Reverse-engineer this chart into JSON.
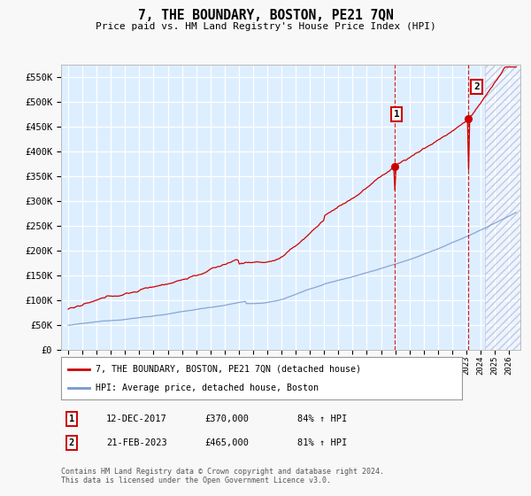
{
  "title": "7, THE BOUNDARY, BOSTON, PE21 7QN",
  "subtitle": "Price paid vs. HM Land Registry's House Price Index (HPI)",
  "ylim": [
    0,
    575000
  ],
  "xlim_start": 1994.5,
  "xlim_end": 2026.8,
  "yticks": [
    0,
    50000,
    100000,
    150000,
    200000,
    250000,
    300000,
    350000,
    400000,
    450000,
    500000,
    550000
  ],
  "ytick_labels": [
    "£0",
    "£50K",
    "£100K",
    "£150K",
    "£200K",
    "£250K",
    "£300K",
    "£350K",
    "£400K",
    "£450K",
    "£500K",
    "£550K"
  ],
  "xtick_years": [
    1995,
    1996,
    1997,
    1998,
    1999,
    2000,
    2001,
    2002,
    2003,
    2004,
    2005,
    2006,
    2007,
    2008,
    2009,
    2010,
    2011,
    2012,
    2013,
    2014,
    2015,
    2016,
    2017,
    2018,
    2019,
    2020,
    2021,
    2022,
    2023,
    2024,
    2025,
    2026
  ],
  "sale1_x": 2017.95,
  "sale1_y": 370000,
  "sale1_label": "1",
  "sale1_date": "12-DEC-2017",
  "sale1_price": "£370,000",
  "sale1_hpi": "84% ↑ HPI",
  "sale2_x": 2023.12,
  "sale2_y": 465000,
  "sale2_label": "2",
  "sale2_date": "21-FEB-2023",
  "sale2_price": "£465,000",
  "sale2_hpi": "81% ↑ HPI",
  "hpi_color": "#7799cc",
  "price_color": "#cc0000",
  "legend_label_price": "7, THE BOUNDARY, BOSTON, PE21 7QN (detached house)",
  "legend_label_hpi": "HPI: Average price, detached house, Boston",
  "footnote": "Contains HM Land Registry data © Crown copyright and database right 2024.\nThis data is licensed under the Open Government Licence v3.0.",
  "background_color": "#ddeeff",
  "fig_bg_color": "#f8f8f8",
  "hatch_start": 2024.3
}
